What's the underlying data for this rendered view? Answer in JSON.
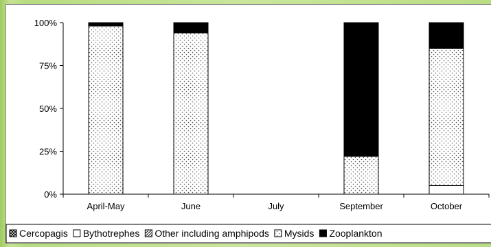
{
  "chart_data": {
    "type": "bar",
    "stacked": true,
    "categories": [
      "April-May",
      "June",
      "July",
      "September",
      "October"
    ],
    "ylim": [
      0,
      100
    ],
    "yticks": [
      "0%",
      "25%",
      "50%",
      "75%",
      "100%"
    ],
    "legend_position": "bottom",
    "series": [
      {
        "name": "Cercopagis",
        "pattern": "cross",
        "values": [
          0,
          0,
          0,
          0,
          0
        ]
      },
      {
        "name": "Bythotrephes",
        "pattern": "empty",
        "values": [
          0,
          0,
          0,
          0,
          5
        ]
      },
      {
        "name": "Other including amphipods",
        "pattern": "hatch",
        "values": [
          0,
          0,
          0,
          0,
          0
        ]
      },
      {
        "name": "Mysids",
        "pattern": "dots",
        "values": [
          98,
          94,
          0,
          22,
          80
        ]
      },
      {
        "name": "Zooplankton",
        "pattern": "solid",
        "values": [
          2,
          6,
          0,
          78,
          15
        ]
      }
    ]
  }
}
